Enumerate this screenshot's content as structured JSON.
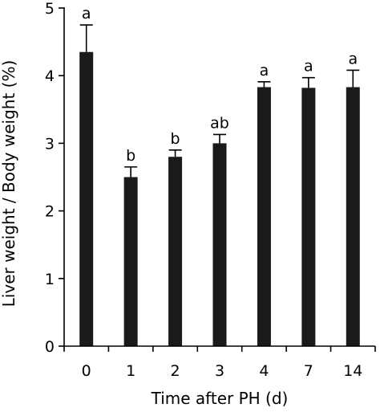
{
  "chart_data": {
    "type": "bar",
    "categories": [
      "0",
      "1",
      "2",
      "3",
      "4",
      "7",
      "14"
    ],
    "values": [
      4.35,
      2.5,
      2.8,
      3.0,
      3.83,
      3.82,
      3.83
    ],
    "errors": [
      0.4,
      0.15,
      0.1,
      0.13,
      0.08,
      0.15,
      0.25
    ],
    "significance": [
      "a",
      "b",
      "b",
      "ab",
      "a",
      "a",
      "a"
    ],
    "xlabel": "Time after PH (d)",
    "ylabel": "Liver weight / Body weight (%)",
    "ylim": [
      0,
      5
    ],
    "yticks": [
      "0",
      "1",
      "2",
      "3",
      "4",
      "5"
    ],
    "grid": false,
    "bar_color": "#1a1a1a"
  }
}
